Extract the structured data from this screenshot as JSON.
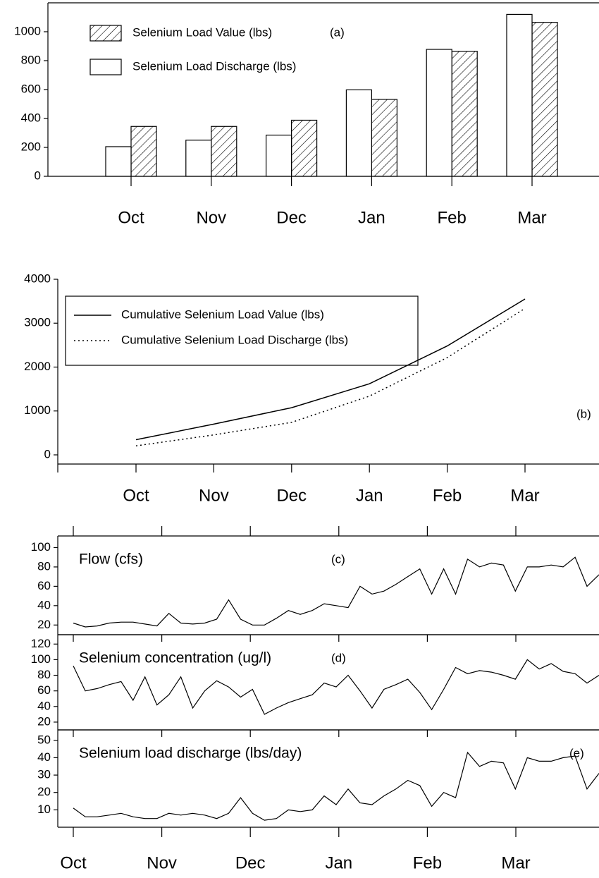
{
  "chart_data": [
    {
      "type": "bar",
      "panel_label": "(a)",
      "categories": [
        "Oct",
        "Nov",
        "Dec",
        "Jan",
        "Feb",
        "Mar"
      ],
      "series": [
        {
          "name": "Selenium Load Value (lbs)",
          "color": "#000000",
          "pattern": "hatch",
          "values": [
            345,
            345,
            388,
            532,
            865,
            1065
          ]
        },
        {
          "name": "Selenium Load Discharge (lbs)",
          "color": "#000000",
          "pattern": "none",
          "values": [
            205,
            250,
            285,
            598,
            878,
            1120
          ]
        }
      ],
      "ylim": [
        0,
        1200
      ],
      "yticks": [
        0,
        200,
        400,
        600,
        800,
        1000
      ]
    },
    {
      "type": "line",
      "panel_label": "(b)",
      "categories": [
        "Oct",
        "Nov",
        "Dec",
        "Jan",
        "Feb",
        "Mar"
      ],
      "series": [
        {
          "name": "Cumulative Selenium Load Value (lbs)",
          "color": "#000000",
          "line_style": "solid",
          "values": [
            345,
            700,
            1075,
            1620,
            2480,
            3550
          ]
        },
        {
          "name": "Cumulative Selenium Load Discharge (lbs)",
          "color": "#000000",
          "line_style": "dotted",
          "values": [
            205,
            455,
            740,
            1338,
            2216,
            3336
          ]
        }
      ],
      "ylim": [
        0,
        4000
      ],
      "yticks": [
        0,
        1000,
        2000,
        3000,
        4000
      ]
    },
    {
      "type": "daily",
      "title": "Flow (cfs)",
      "panel_label": "(c)",
      "color": "#000000",
      "values": [
        22,
        18,
        19,
        22,
        23,
        23,
        21,
        19,
        32,
        22,
        21,
        22,
        26,
        46,
        26,
        20,
        20,
        27,
        35,
        31,
        35,
        42,
        40,
        38,
        60,
        52,
        55,
        62,
        70,
        78,
        52,
        78,
        52,
        88,
        80,
        84,
        82,
        55,
        80,
        80,
        82,
        80,
        90,
        60,
        72
      ],
      "ylim": [
        10,
        112
      ],
      "yticks": [
        20,
        40,
        60,
        80,
        100
      ]
    },
    {
      "type": "daily",
      "title": "Selenium concentration (ug/l)",
      "panel_label": "(d)",
      "color": "#000000",
      "values": [
        92,
        60,
        63,
        68,
        72,
        48,
        78,
        42,
        55,
        78,
        38,
        60,
        73,
        65,
        52,
        62,
        30,
        38,
        45,
        50,
        55,
        70,
        65,
        80,
        60,
        38,
        62,
        68,
        75,
        58,
        36,
        62,
        90,
        82,
        86,
        84,
        80,
        75,
        100,
        88,
        95,
        85,
        82,
        70,
        80
      ],
      "ylim": [
        10,
        132
      ],
      "yticks": [
        20,
        40,
        60,
        80,
        100,
        120
      ]
    },
    {
      "type": "daily",
      "title": "Selenium load discharge (lbs/day)",
      "panel_label": "(e)",
      "color": "#000000",
      "values": [
        11,
        6,
        6,
        7,
        8,
        6,
        5,
        5,
        8,
        7,
        8,
        7,
        5,
        8,
        17,
        8,
        4,
        5,
        10,
        9,
        10,
        18,
        13,
        22,
        14,
        13,
        18,
        22,
        27,
        24,
        12,
        20,
        17,
        43,
        35,
        38,
        37,
        22,
        40,
        38,
        38,
        40,
        41,
        22,
        31
      ],
      "ylim": [
        0,
        56
      ],
      "yticks": [
        10,
        20,
        30,
        40,
        50
      ],
      "months": [
        "Oct",
        "Nov",
        "Dec",
        "Jan",
        "Feb",
        "Mar"
      ]
    }
  ]
}
